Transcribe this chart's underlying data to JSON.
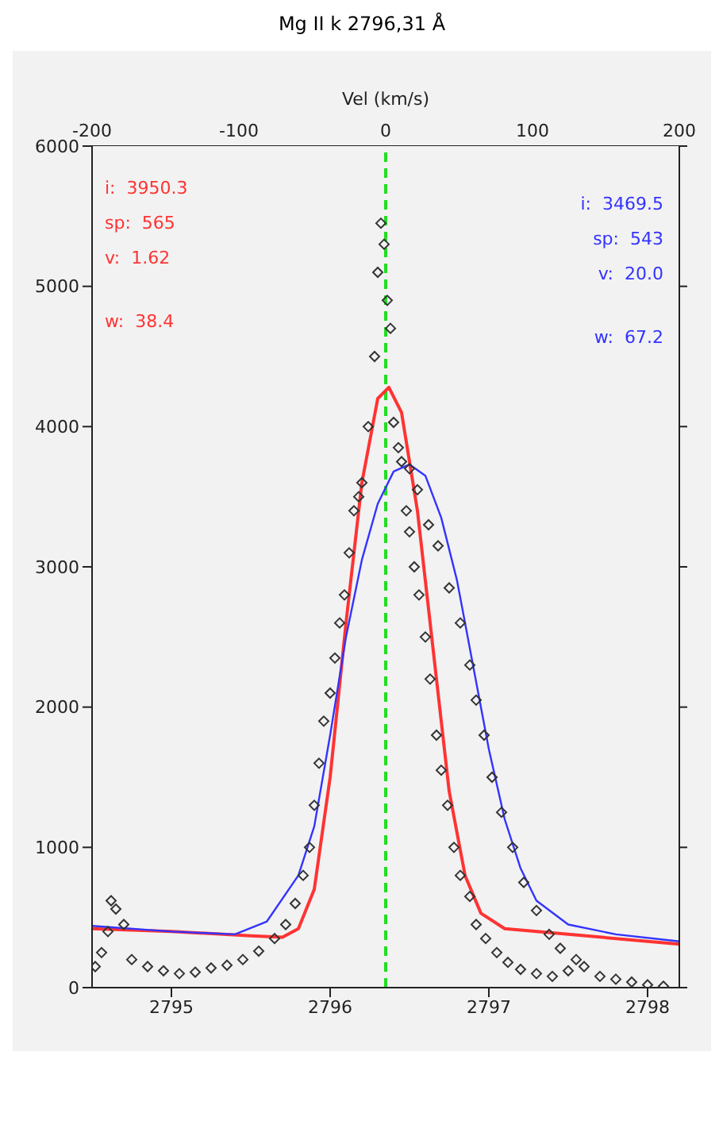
{
  "chart_data": {
    "type": "scatter",
    "title": "Mg II k 2796,31 Å",
    "x2label": "Vel (km/s)",
    "xlim": [
      2794.5,
      2798.2
    ],
    "xticks": [
      2795,
      2796,
      2797,
      2798
    ],
    "x2lim": [
      -200,
      200
    ],
    "x2ticks": [
      -200,
      -100,
      0,
      100,
      200
    ],
    "ylim": [
      0,
      6000
    ],
    "yticks": [
      0,
      1000,
      2000,
      3000,
      4000,
      5000,
      6000
    ],
    "grid": false,
    "legend": false,
    "ref_lines": [
      {
        "axis": "x2",
        "value": 0,
        "color": "#22dd22",
        "line_style": "dashed"
      }
    ],
    "annotations": [
      "i:  3950.3",
      "sp:  565",
      "v:  1.62",
      "w:  38.4",
      "i:  3469.5",
      "sp:  543",
      "v:  20.0",
      "w:  67.2"
    ],
    "series": [
      {
        "color": "#333333",
        "marker": "diamond",
        "x": [
          2794.52,
          2794.56,
          2794.6,
          2794.62,
          2794.65,
          2794.7,
          2794.75,
          2794.85,
          2794.95,
          2795.05,
          2795.15,
          2795.25,
          2795.35,
          2795.45,
          2795.55,
          2795.65,
          2795.72,
          2795.78,
          2795.83,
          2795.87,
          2795.9,
          2795.93,
          2795.96,
          2796.0,
          2796.03,
          2796.06,
          2796.09,
          2796.12,
          2796.15,
          2796.18,
          2796.2,
          2796.24,
          2796.28,
          2796.3,
          2796.32,
          2796.34,
          2796.36,
          2796.38,
          2796.4,
          2796.43,
          2796.45,
          2796.48,
          2796.5,
          2796.53,
          2796.56,
          2796.6,
          2796.63,
          2796.67,
          2796.7,
          2796.74,
          2796.78,
          2796.82,
          2796.88,
          2796.92,
          2796.98,
          2797.05,
          2797.12,
          2797.2,
          2797.3,
          2797.4,
          2797.5,
          2797.55,
          2797.6,
          2797.7,
          2797.8,
          2797.9,
          2798.0,
          2798.1,
          2796.5,
          2796.55,
          2796.62,
          2796.68,
          2796.75,
          2796.82,
          2796.88,
          2796.92,
          2796.97,
          2797.02,
          2797.08,
          2797.15,
          2797.22,
          2797.3,
          2797.38,
          2797.45
        ],
        "values": [
          150,
          250,
          400,
          620,
          560,
          450,
          200,
          150,
          120,
          100,
          110,
          140,
          160,
          200,
          260,
          350,
          450,
          600,
          800,
          1000,
          1300,
          1600,
          1900,
          2100,
          2350,
          2600,
          2800,
          3100,
          3400,
          3500,
          3600,
          4000,
          4500,
          5100,
          5450,
          5300,
          4900,
          4700,
          4030,
          3850,
          3750,
          3400,
          3250,
          3000,
          2800,
          2500,
          2200,
          1800,
          1550,
          1300,
          1000,
          800,
          650,
          450,
          350,
          250,
          180,
          130,
          100,
          80,
          120,
          200,
          150,
          80,
          60,
          40,
          20,
          10,
          3700,
          3550,
          3300,
          3150,
          2850,
          2600,
          2300,
          2050,
          1800,
          1500,
          1250,
          1000,
          750,
          550,
          380,
          280
        ]
      },
      {
        "type": "line",
        "color": "#ff3333",
        "marker": "none",
        "x": [
          2794.5,
          2795.0,
          2795.5,
          2795.7,
          2795.8,
          2795.9,
          2796.0,
          2796.1,
          2796.2,
          2796.3,
          2796.37,
          2796.45,
          2796.55,
          2796.65,
          2796.75,
          2796.85,
          2796.95,
          2797.1,
          2797.5,
          2798.0,
          2798.2
        ],
        "values": [
          420,
          400,
          370,
          360,
          420,
          700,
          1500,
          2600,
          3600,
          4200,
          4280,
          4100,
          3400,
          2400,
          1400,
          800,
          530,
          420,
          380,
          330,
          310
        ]
      },
      {
        "type": "line",
        "color": "#3333ff",
        "marker": "none",
        "x": [
          2794.5,
          2795.0,
          2795.4,
          2795.6,
          2795.8,
          2795.9,
          2796.0,
          2796.1,
          2796.2,
          2796.3,
          2796.4,
          2796.5,
          2796.6,
          2796.7,
          2796.8,
          2796.9,
          2797.0,
          2797.1,
          2797.2,
          2797.3,
          2797.5,
          2797.8,
          2798.2
        ],
        "values": [
          440,
          400,
          380,
          470,
          800,
          1150,
          1800,
          2500,
          3050,
          3450,
          3680,
          3730,
          3650,
          3350,
          2900,
          2300,
          1700,
          1200,
          850,
          620,
          450,
          380,
          330
        ]
      }
    ]
  }
}
